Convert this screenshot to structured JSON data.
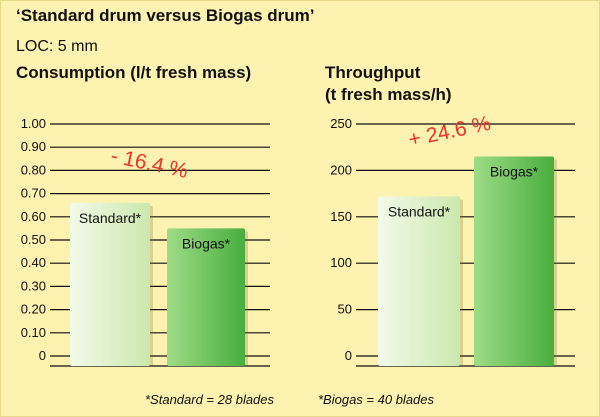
{
  "title": "‘Standard drum versus Biogas drum’",
  "subtitle": "LOC: 5 mm",
  "chart_data": [
    {
      "type": "bar",
      "title": "Consumption (l/t fresh mass)",
      "categories": [
        "Standard*",
        "Biogas*"
      ],
      "values": [
        0.66,
        0.55
      ],
      "ylim": [
        0,
        1.0
      ],
      "yticks": [
        "0",
        "0.10",
        "0.20",
        "0.30",
        "0.40",
        "0.50",
        "0.60",
        "0.70",
        "0.80",
        "0.90",
        "1.00"
      ],
      "ytick_values": [
        0,
        0.1,
        0.2,
        0.3,
        0.4,
        0.5,
        0.6,
        0.7,
        0.8,
        0.9,
        1.0
      ],
      "annotation": "- 16.4 %",
      "grid": true
    },
    {
      "type": "bar",
      "title_lines": [
        "Throughput",
        "(t fresh mass/h)"
      ],
      "categories": [
        "Standard*",
        "Biogas*"
      ],
      "values": [
        172,
        215
      ],
      "ylim": [
        0,
        250
      ],
      "yticks": [
        "0",
        "50",
        "100",
        "150",
        "200",
        "250"
      ],
      "ytick_values": [
        0,
        50,
        100,
        150,
        200,
        250
      ],
      "annotation": "+ 24.6 %",
      "grid": true
    }
  ],
  "footnotes": {
    "standard": "*Standard = 28 blades",
    "biogas": "*Biogas = 40 blades"
  },
  "colors": {
    "background": "#fdf2b0",
    "standard_bar_light": "#eef7d8",
    "standard_bar_dark": "#c9e6a8",
    "biogas_bar_light": "#8fd57a",
    "biogas_bar_dark": "#4fb444",
    "annotation": "#e8342b",
    "grid": "#111111"
  }
}
